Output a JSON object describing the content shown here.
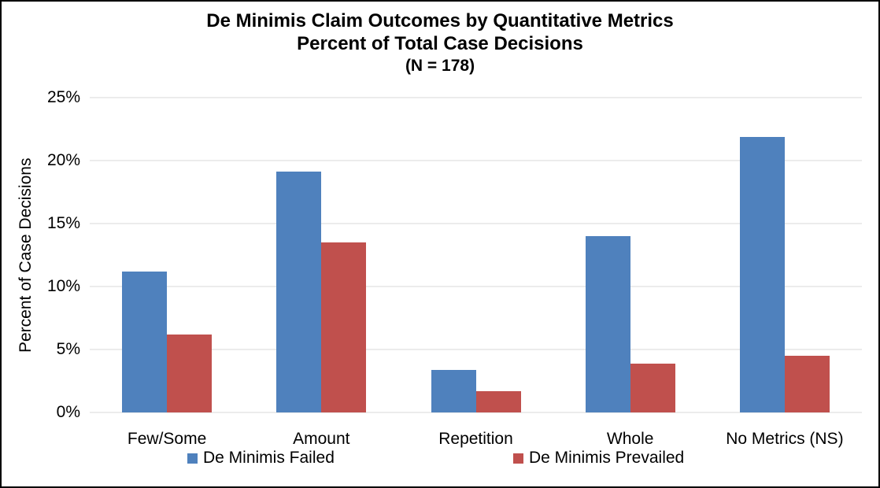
{
  "title": {
    "line1": "De Minimis Claim Outcomes by Quantitative Metrics",
    "line2": "Percent of Total Case Decisions",
    "line3": "(N = 178)"
  },
  "chart_data": {
    "type": "bar",
    "title": "De Minimis Claim Outcomes by Quantitative Metrics",
    "subtitle": "Percent of Total Case Decisions",
    "note": "(N = 178)",
    "categories": [
      "Few/Some",
      "Amount",
      "Repetition",
      "Whole",
      "No Metrics (NS)"
    ],
    "series": [
      {
        "name": "De Minimis Failed",
        "color": "#4F81BD",
        "values": [
          11.2,
          19.1,
          3.4,
          14.0,
          21.9
        ]
      },
      {
        "name": "De Minimis Prevailed",
        "color": "#C0504D",
        "values": [
          6.2,
          13.5,
          1.7,
          3.9,
          4.5
        ]
      }
    ],
    "xlabel": "",
    "ylabel": "Percent of Case Decisions",
    "ylim": [
      0,
      25
    ],
    "ytick_step": 5,
    "ytick_labels": [
      "0%",
      "5%",
      "10%",
      "15%",
      "20%",
      "25%"
    ],
    "grid": true,
    "gridline_color": "#d9d9d9",
    "legend_position": "bottom"
  }
}
